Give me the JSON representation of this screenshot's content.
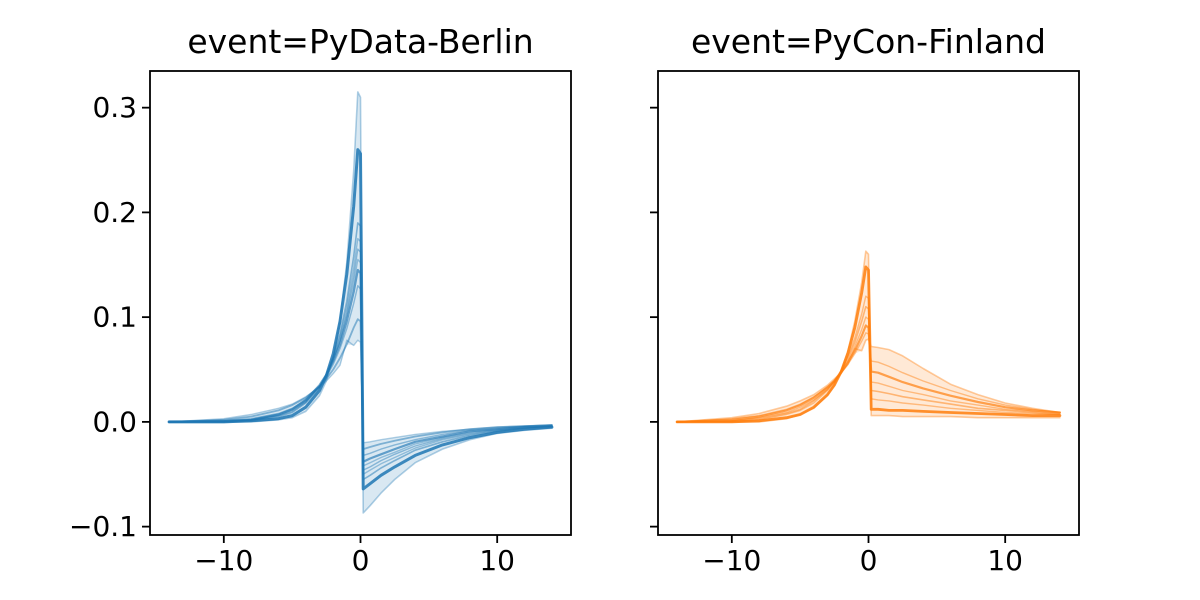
{
  "figure": {
    "background": "#ffffff"
  },
  "chart_data": [
    {
      "type": "line",
      "title": "event=PyData-Berlin",
      "line_color": "#1f77b4",
      "band_alpha": 0.17,
      "xlabel": "",
      "ylabel": "",
      "grid": false,
      "legend": null,
      "xlim": [
        -15.4,
        15.4
      ],
      "ylim": [
        -0.108,
        0.335
      ],
      "xticks": [
        -10,
        0,
        10
      ],
      "xtick_labels": [
        "−10",
        "0",
        "10"
      ],
      "yticks": [
        -0.1,
        0.0,
        0.1,
        0.2,
        0.3
      ],
      "ytick_labels": [
        "−0.1",
        "0.0",
        "0.1",
        "0.2",
        "0.3"
      ],
      "show_ytick_labels": true,
      "x": [
        -14,
        -10,
        -8,
        -6,
        -5,
        -4,
        -3,
        -2.5,
        -2,
        -1.5,
        -1,
        -0.5,
        -0.2,
        0,
        0.2,
        0.7,
        1.5,
        2.5,
        4,
        6,
        8,
        10,
        12,
        14
      ],
      "series": [
        {
          "name": "trace-1",
          "lw": 1.6,
          "alpha": 0.35,
          "values": [
            0,
            0,
            0,
            0.002,
            0.004,
            0.01,
            0.025,
            0.039,
            0.061,
            0.097,
            0.152,
            0.24,
            0.315,
            0.31,
            -0.087,
            -0.08,
            -0.068,
            -0.055,
            -0.039,
            -0.026,
            -0.017,
            -0.011,
            -0.008,
            -0.006
          ]
        },
        {
          "name": "trace-2",
          "lw": 3.0,
          "alpha": 0.85,
          "values": [
            0,
            0,
            0.001,
            0.003,
            0.006,
            0.014,
            0.03,
            0.044,
            0.065,
            0.096,
            0.141,
            0.206,
            0.26,
            0.256,
            -0.064,
            -0.059,
            -0.051,
            -0.043,
            -0.032,
            -0.022,
            -0.015,
            -0.01,
            -0.007,
            -0.005
          ]
        },
        {
          "name": "trace-3",
          "lw": 1.6,
          "alpha": 0.5,
          "values": [
            0,
            0,
            0.001,
            0.005,
            0.009,
            0.018,
            0.033,
            0.045,
            0.062,
            0.084,
            0.115,
            0.158,
            0.19,
            0.187,
            -0.055,
            -0.051,
            -0.044,
            -0.037,
            -0.027,
            -0.019,
            -0.013,
            -0.009,
            -0.006,
            -0.005
          ]
        },
        {
          "name": "trace-4",
          "lw": 1.4,
          "alpha": 0.4,
          "values": [
            0,
            0,
            0.002,
            0.006,
            0.01,
            0.019,
            0.034,
            0.045,
            0.061,
            0.081,
            0.109,
            0.147,
            0.175,
            0.172,
            -0.05,
            -0.046,
            -0.04,
            -0.034,
            -0.025,
            -0.017,
            -0.012,
            -0.008,
            -0.006,
            -0.004
          ]
        },
        {
          "name": "trace-5",
          "lw": 1.4,
          "alpha": 0.45,
          "values": [
            0,
            0,
            0.002,
            0.006,
            0.011,
            0.019,
            0.033,
            0.044,
            0.059,
            0.078,
            0.104,
            0.139,
            0.165,
            0.162,
            -0.046,
            -0.043,
            -0.037,
            -0.031,
            -0.023,
            -0.016,
            -0.011,
            -0.008,
            -0.005,
            -0.004
          ]
        },
        {
          "name": "trace-6",
          "lw": 1.4,
          "alpha": 0.4,
          "values": [
            0,
            0,
            0.002,
            0.007,
            0.012,
            0.02,
            0.034,
            0.045,
            0.059,
            0.077,
            0.101,
            0.132,
            0.155,
            0.152,
            -0.042,
            -0.039,
            -0.034,
            -0.029,
            -0.021,
            -0.015,
            -0.01,
            -0.007,
            -0.005,
            -0.004
          ]
        },
        {
          "name": "trace-7",
          "lw": 2.2,
          "alpha": 0.65,
          "values": [
            0,
            0.001,
            0.002,
            0.007,
            0.012,
            0.021,
            0.035,
            0.045,
            0.058,
            0.074,
            0.096,
            0.124,
            0.145,
            0.142,
            -0.038,
            -0.035,
            -0.031,
            -0.026,
            -0.019,
            -0.014,
            -0.009,
            -0.007,
            -0.005,
            -0.004
          ]
        },
        {
          "name": "trace-8",
          "lw": 1.4,
          "alpha": 0.45,
          "values": [
            0,
            0.001,
            0.003,
            0.008,
            0.013,
            0.021,
            0.034,
            0.043,
            0.055,
            0.07,
            0.089,
            0.113,
            0.13,
            0.127,
            -0.032,
            -0.03,
            -0.026,
            -0.022,
            -0.017,
            -0.012,
            -0.008,
            -0.006,
            -0.004,
            -0.003
          ]
        },
        {
          "name": "trace-9",
          "lw": 1.8,
          "alpha": 0.5,
          "values": [
            0,
            0.002,
            0.005,
            0.011,
            0.016,
            0.023,
            0.034,
            0.041,
            0.05,
            0.061,
            0.074,
            0.09,
            0.098,
            0.096,
            -0.026,
            -0.024,
            -0.021,
            -0.018,
            -0.014,
            -0.01,
            -0.007,
            -0.005,
            -0.004,
            -0.003
          ]
        },
        {
          "name": "trace-10",
          "lw": 1.4,
          "alpha": 0.35,
          "values": [
            0,
            0.003,
            0.007,
            0.013,
            0.017,
            0.024,
            0.033,
            0.039,
            0.046,
            0.054,
            0.078,
            0.073,
            0.078,
            0.076,
            -0.02,
            -0.019,
            -0.017,
            -0.015,
            -0.012,
            -0.009,
            -0.007,
            -0.005,
            -0.004,
            -0.003
          ]
        }
      ]
    },
    {
      "type": "line",
      "title": "event=PyCon-Finland",
      "line_color": "#ff7f0e",
      "band_alpha": 0.17,
      "xlabel": "",
      "ylabel": "",
      "grid": false,
      "legend": null,
      "xlim": [
        -15.4,
        15.4
      ],
      "ylim": [
        -0.108,
        0.335
      ],
      "xticks": [
        -10,
        0,
        10
      ],
      "xtick_labels": [
        "−10",
        "0",
        "10"
      ],
      "yticks": [
        -0.1,
        0.0,
        0.1,
        0.2,
        0.3
      ],
      "ytick_labels": [
        "−0.1",
        "0.0",
        "0.1",
        "0.2",
        "0.3"
      ],
      "show_ytick_labels": false,
      "x": [
        -14,
        -10,
        -8,
        -6,
        -5,
        -4,
        -3,
        -2.5,
        -2,
        -1.5,
        -1,
        -0.5,
        -0.2,
        0,
        0.2,
        0.7,
        1.5,
        2.5,
        4,
        6,
        8,
        10,
        12,
        14
      ],
      "series": [
        {
          "name": "trace-1",
          "lw": 1.6,
          "alpha": 0.4,
          "values": [
            0,
            0,
            0,
            0.003,
            0.007,
            0.013,
            0.025,
            0.035,
            0.049,
            0.068,
            0.096,
            0.133,
            0.163,
            0.16,
            0.006,
            0.006,
            0.006,
            0.005,
            0.005,
            0.005,
            0.004,
            0.004,
            0.004,
            0.004
          ]
        },
        {
          "name": "trace-2",
          "lw": 2.8,
          "alpha": 0.85,
          "values": [
            0,
            0,
            0.001,
            0.004,
            0.007,
            0.014,
            0.026,
            0.035,
            0.048,
            0.066,
            0.09,
            0.123,
            0.148,
            0.145,
            0.012,
            0.012,
            0.011,
            0.011,
            0.01,
            0.009,
            0.008,
            0.007,
            0.006,
            0.006
          ]
        },
        {
          "name": "trace-3",
          "lw": 1.4,
          "alpha": 0.45,
          "values": [
            0,
            0,
            0.002,
            0.007,
            0.011,
            0.018,
            0.03,
            0.038,
            0.049,
            0.063,
            0.08,
            0.103,
            0.12,
            0.118,
            0.022,
            0.021,
            0.02,
            0.018,
            0.016,
            0.013,
            0.011,
            0.009,
            0.008,
            0.007
          ]
        },
        {
          "name": "trace-4",
          "lw": 1.6,
          "alpha": 0.5,
          "values": [
            0,
            0.001,
            0.003,
            0.008,
            0.012,
            0.02,
            0.031,
            0.039,
            0.049,
            0.061,
            0.076,
            0.096,
            0.11,
            0.108,
            0.03,
            0.029,
            0.027,
            0.024,
            0.021,
            0.017,
            0.013,
            0.011,
            0.009,
            0.007
          ]
        },
        {
          "name": "trace-5",
          "lw": 1.4,
          "alpha": 0.45,
          "values": [
            0,
            0.001,
            0.004,
            0.009,
            0.014,
            0.021,
            0.031,
            0.038,
            0.047,
            0.058,
            0.072,
            0.088,
            0.1,
            0.098,
            0.038,
            0.037,
            0.034,
            0.03,
            0.026,
            0.02,
            0.016,
            0.012,
            0.01,
            0.008
          ]
        },
        {
          "name": "trace-6",
          "lw": 2.2,
          "alpha": 0.7,
          "values": [
            0,
            0.002,
            0.005,
            0.011,
            0.016,
            0.023,
            0.033,
            0.039,
            0.047,
            0.057,
            0.068,
            0.082,
            0.092,
            0.09,
            0.048,
            0.047,
            0.043,
            0.038,
            0.032,
            0.025,
            0.019,
            0.014,
            0.011,
            0.009
          ]
        },
        {
          "name": "trace-7",
          "lw": 1.4,
          "alpha": 0.45,
          "values": [
            0,
            0.003,
            0.006,
            0.012,
            0.017,
            0.024,
            0.033,
            0.039,
            0.047,
            0.055,
            0.065,
            0.077,
            0.085,
            0.084,
            0.058,
            0.057,
            0.053,
            0.047,
            0.039,
            0.03,
            0.022,
            0.016,
            0.012,
            0.009
          ]
        },
        {
          "name": "trace-8",
          "lw": 1.6,
          "alpha": 0.4,
          "values": [
            0,
            0.004,
            0.008,
            0.015,
            0.02,
            0.026,
            0.035,
            0.041,
            0.047,
            0.055,
            0.07,
            0.068,
            0.078,
            0.079,
            0.072,
            0.071,
            0.069,
            0.063,
            0.051,
            0.036,
            0.026,
            0.018,
            0.013,
            0.009
          ]
        }
      ]
    }
  ]
}
